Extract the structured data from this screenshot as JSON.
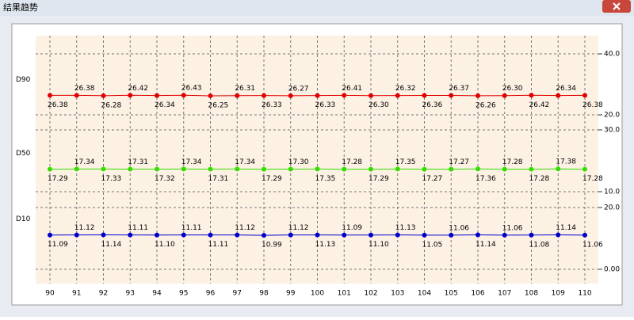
{
  "chart_data": {
    "type": "line",
    "title": "结果趋势",
    "x": [
      90,
      91,
      92,
      93,
      94,
      95,
      96,
      97,
      98,
      99,
      100,
      101,
      102,
      103,
      104,
      105,
      106,
      107,
      108,
      109,
      110
    ],
    "xlim": [
      90,
      110
    ],
    "grid": true,
    "series": [
      {
        "name": "D90",
        "color": "#e00000",
        "values": [
          26.38,
          26.38,
          26.28,
          26.42,
          26.34,
          26.43,
          26.25,
          26.31,
          26.33,
          26.27,
          26.33,
          26.41,
          26.3,
          26.32,
          26.36,
          26.37,
          26.26,
          26.3,
          26.42,
          26.34,
          26.38
        ],
        "value_labels": [
          "26.38",
          "26.38",
          "26.28",
          "26.42",
          "26.34",
          "26.43",
          "26.25",
          "26.31",
          "26.33",
          "26.27",
          "26.33",
          "26.41",
          "26.30",
          "26.32",
          "26.36",
          "26.37",
          "26.26",
          "26.30",
          "26.42",
          "26.34",
          "26.38"
        ],
        "ylim": [
          20,
          40
        ],
        "yticks": [
          {
            "value": 20,
            "label": "20.0"
          },
          {
            "value": 40,
            "label": "40.0"
          }
        ]
      },
      {
        "name": "D50",
        "color": "#33dd00",
        "values": [
          17.29,
          17.34,
          17.33,
          17.31,
          17.32,
          17.34,
          17.31,
          17.34,
          17.29,
          17.3,
          17.35,
          17.28,
          17.29,
          17.35,
          17.27,
          17.27,
          17.36,
          17.28,
          17.28,
          17.38,
          17.28
        ],
        "value_labels": [
          "17.29",
          "17.34",
          "17.33",
          "17.31",
          "17.32",
          "17.34",
          "17.31",
          "17.34",
          "17.29",
          "17.30",
          "17.35",
          "17.28",
          "17.29",
          "17.35",
          "17.27",
          "17.27",
          "17.36",
          "17.28",
          "17.28",
          "17.38",
          "17.28"
        ],
        "ylim": [
          10,
          30
        ],
        "yticks": [
          {
            "value": 10,
            "label": "10.0"
          },
          {
            "value": 30,
            "label": "30.0"
          }
        ]
      },
      {
        "name": "D10",
        "color": "#0000cc",
        "values": [
          11.09,
          11.12,
          11.14,
          11.11,
          11.1,
          11.11,
          11.11,
          11.12,
          10.99,
          11.12,
          11.13,
          11.09,
          11.1,
          11.13,
          11.05,
          11.06,
          11.14,
          11.06,
          11.08,
          11.14,
          11.06
        ],
        "value_labels": [
          "11.09",
          "11.12",
          "11.14",
          "11.11",
          "11.10",
          "11.11",
          "11.11",
          "11.12",
          "10.99",
          "11.12",
          "11.13",
          "11.09",
          "11.10",
          "11.13",
          "11.05",
          "11.06",
          "11.14",
          "11.06",
          "11.08",
          "11.14",
          "11.06"
        ],
        "ylim": [
          0,
          20
        ],
        "yticks": [
          {
            "value": 0,
            "label": "0.00"
          },
          {
            "value": 20,
            "label": "20.0"
          }
        ]
      }
    ]
  }
}
